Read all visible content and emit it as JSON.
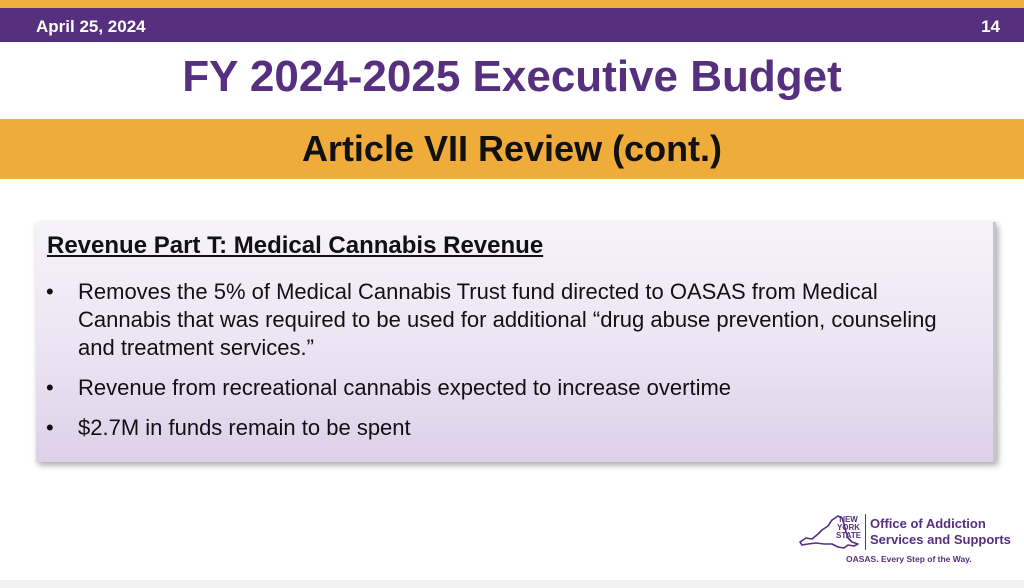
{
  "header": {
    "date": "April 25, 2024",
    "page_number": "14"
  },
  "title": "FY 2024-2025 Executive Budget",
  "subtitle": "Article VII Review (cont.)",
  "content": {
    "heading": "Revenue Part T: Medical Cannabis Revenue",
    "bullets": [
      {
        "marker": "•",
        "text": "Removes the 5% of Medical Cannabis Trust fund directed to OASAS from Medical Cannabis that was required to be used for additional “drug abuse prevention, counseling and treatment services.”"
      },
      {
        "marker": "•",
        "text": "Revenue from recreational cannabis expected to increase overtime"
      },
      {
        "marker": "•",
        "text": "$2.7M in funds remain to be spent"
      }
    ]
  },
  "logo": {
    "state_label_line1": "NEW",
    "state_label_line2": "YORK",
    "state_label_line3": "STATE",
    "org_line1": "Office of Addiction",
    "org_line2": "Services and Supports",
    "tagline": "OASAS. Every Step of the Way.",
    "icon": "ny-state-map-icon"
  },
  "colors": {
    "purple": "#56307f",
    "gold": "#efac3b",
    "box_gradient_end": "#ddd0e9"
  }
}
